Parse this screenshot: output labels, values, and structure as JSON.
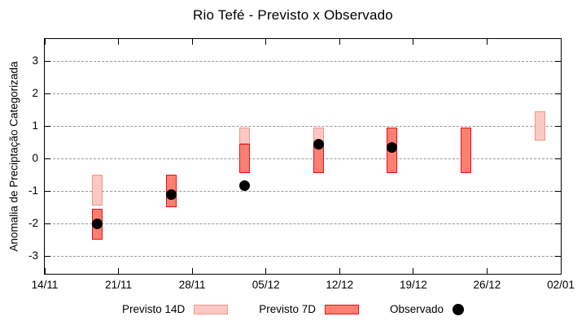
{
  "chart": {
    "title": "Rio Tefé - Previsto x Observado",
    "ylabel": "Anomalia de Preciptação Categorizada"
  },
  "legend": {
    "previsto14": {
      "label": "Previsto 14D"
    },
    "previsto7": {
      "label": "Previsto 7D"
    },
    "observado": {
      "label": "Observado"
    }
  },
  "colors": {
    "previsto14_fill": "#fbc9c3",
    "previsto14_edge": "#f0958a",
    "previsto7_fill": "#fa8072",
    "previsto7_edge": "#f00d19",
    "observado": "#000000",
    "grid": "#999999",
    "frame": "#000000",
    "text": "#000000"
  },
  "chart_data": {
    "type": "bar",
    "title": "Rio Tefé - Previsto x Observado",
    "xlabel": "",
    "ylabel": "Anomalia de Preciptação Categorizada",
    "x_tick_labels": [
      "14/11",
      "21/11",
      "28/11",
      "05/12",
      "12/12",
      "19/12",
      "26/12",
      "02/01"
    ],
    "x_tick_days": [
      0,
      7,
      14,
      21,
      28,
      35,
      42,
      49
    ],
    "xlim_days": [
      0,
      49
    ],
    "y_ticks": [
      3,
      2,
      1,
      0,
      -1,
      -2,
      -3
    ],
    "y_tick_labels": [
      "3",
      "2",
      "1",
      "0",
      "-1",
      "-2",
      "-3"
    ],
    "ylim": [
      -3.55,
      3.68
    ],
    "grid": "horizontal-dashed",
    "legend_position": "bottom",
    "series": [
      {
        "name": "Previsto 14D",
        "type": "range-bar"
      },
      {
        "name": "Previsto 7D",
        "type": "range-bar"
      },
      {
        "name": "Observado",
        "type": "scatter"
      }
    ],
    "groups": [
      {
        "day": 5,
        "previsto14": [
          -0.5,
          -1.45
        ],
        "previsto7": [
          -1.55,
          -2.5
        ],
        "observado": -2.0
      },
      {
        "day": 12,
        "previsto14": null,
        "previsto7": [
          -0.5,
          -1.5
        ],
        "observado": -1.1
      },
      {
        "day": 19,
        "previsto14": [
          0.95,
          0.45
        ],
        "previsto7": [
          0.45,
          -0.45
        ],
        "observado": -0.83
      },
      {
        "day": 26,
        "previsto14": [
          0.95,
          0.45
        ],
        "previsto7": [
          0.45,
          -0.45
        ],
        "observado": 0.45
      },
      {
        "day": 33,
        "previsto14": null,
        "previsto7": [
          0.95,
          -0.45
        ],
        "observado": 0.35
      },
      {
        "day": 40,
        "previsto14": null,
        "previsto7": [
          0.95,
          -0.45
        ],
        "observado": null
      },
      {
        "day": 47,
        "previsto14": [
          1.45,
          0.55
        ],
        "previsto7": null,
        "observado": null
      }
    ]
  }
}
